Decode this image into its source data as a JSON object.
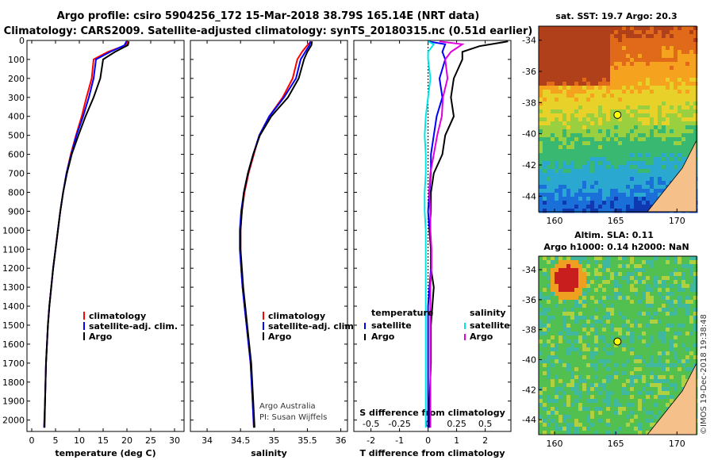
{
  "header": {
    "title_line1": "Argo profile: csiro 5904256_172 15-Mar-2018 38.79S 165.14E (NRT data)",
    "title_line2": "Climatology: CARS2009. Satellite-adjusted climatology: synTS_20180315.nc (0.51d earlier)"
  },
  "colors": {
    "climatology": "#ff0000",
    "satellite": "#0000ff",
    "argo": "#000000",
    "sal_satellite": "#00e5e5",
    "sal_argo": "#e000e0"
  },
  "chart_data": [
    {
      "type": "line",
      "id": "temperature",
      "xlabel": "temperature (deg C)",
      "xlim": [
        -1,
        32
      ],
      "xticks": [
        0,
        5,
        10,
        15,
        20,
        25,
        30
      ],
      "xtick_labels": [
        "0",
        "5",
        "10",
        "15",
        "20",
        "25",
        "30"
      ],
      "ylim": [
        2060,
        0
      ],
      "yticks": [
        0,
        100,
        200,
        300,
        400,
        500,
        600,
        700,
        800,
        900,
        1000,
        1100,
        1200,
        1300,
        1400,
        1500,
        1600,
        1700,
        1800,
        1900,
        2000
      ],
      "ytick_labels": [
        "0",
        "100",
        "200",
        "300",
        "400",
        "500",
        "600",
        "700",
        "800",
        "900",
        "1000",
        "1100",
        "1200",
        "1300",
        "1400",
        "1500",
        "1600",
        "1700",
        "1800",
        "1900",
        "2000"
      ],
      "legend": [
        "climatology",
        "satellite-adj. clim.",
        "Argo"
      ],
      "legend_position": "lower-right",
      "series": [
        {
          "name": "climatology",
          "color": "#ff0000",
          "x": [
            20.3,
            19.8,
            16.0,
            13.0,
            12.6,
            11.5,
            10.5,
            9.3,
            8.2,
            7.3,
            6.6,
            6.0,
            5.5,
            5.0,
            4.5,
            4.1,
            3.7,
            3.4,
            3.2,
            3.0,
            2.8,
            2.6
          ],
          "y": [
            5,
            25,
            60,
            100,
            200,
            300,
            400,
            500,
            600,
            700,
            800,
            900,
            1000,
            1100,
            1200,
            1300,
            1400,
            1500,
            1600,
            1700,
            1900,
            2040
          ]
        },
        {
          "name": "satellite-adj. clim.",
          "color": "#0000ff",
          "x": [
            19.9,
            19.5,
            16.5,
            13.5,
            13.0,
            12.0,
            10.8,
            9.4,
            8.3,
            7.3,
            6.6,
            6.0,
            5.5,
            5.0,
            4.5,
            4.1,
            3.7,
            3.4,
            3.2,
            3.0,
            2.8,
            2.6
          ],
          "y": [
            5,
            25,
            60,
            100,
            200,
            300,
            400,
            500,
            600,
            700,
            800,
            900,
            1000,
            1100,
            1200,
            1300,
            1400,
            1500,
            1600,
            1700,
            1900,
            2040
          ]
        },
        {
          "name": "Argo",
          "color": "#000000",
          "x": [
            20.4,
            20.2,
            17.5,
            15.0,
            14.4,
            13.0,
            11.3,
            9.8,
            8.4,
            7.4,
            6.6,
            6.0,
            5.5,
            5.0,
            4.5,
            4.1,
            3.7,
            3.4,
            3.2,
            3.0,
            2.8,
            2.7
          ],
          "y": [
            5,
            25,
            60,
            100,
            200,
            300,
            400,
            500,
            600,
            700,
            800,
            900,
            1000,
            1100,
            1200,
            1300,
            1400,
            1500,
            1600,
            1700,
            1900,
            2040
          ]
        }
      ]
    },
    {
      "type": "line",
      "id": "salinity",
      "xlabel": "salinity",
      "xlim": [
        33.75,
        36.1
      ],
      "xticks": [
        34,
        34.5,
        35,
        35.5,
        36
      ],
      "xtick_labels": [
        "34",
        "34.5",
        "35",
        "35.5",
        "36"
      ],
      "ylim": [
        2060,
        0
      ],
      "legend": [
        "climatology",
        "satellite-adj. clim.",
        "Argo"
      ],
      "legend_position": "lower-right",
      "credit_line1": "Argo Australia",
      "credit_line2": "PI: Susan Wijffels",
      "series": [
        {
          "name": "climatology",
          "color": "#ff0000",
          "x": [
            35.55,
            35.5,
            35.42,
            35.35,
            35.28,
            35.13,
            34.93,
            34.78,
            34.7,
            34.62,
            34.56,
            34.52,
            34.5,
            34.5,
            34.51,
            34.53,
            34.56,
            34.59,
            34.62,
            34.65,
            34.68,
            34.7
          ],
          "y": [
            5,
            25,
            60,
            100,
            200,
            300,
            400,
            500,
            600,
            700,
            800,
            900,
            1000,
            1100,
            1200,
            1300,
            1400,
            1500,
            1600,
            1700,
            1900,
            2040
          ]
        },
        {
          "name": "satellite-adj. clim.",
          "color": "#0000ff",
          "x": [
            35.55,
            35.53,
            35.47,
            35.4,
            35.33,
            35.15,
            34.93,
            34.78,
            34.69,
            34.61,
            34.55,
            34.51,
            34.49,
            34.49,
            34.51,
            34.53,
            34.56,
            34.59,
            34.62,
            34.65,
            34.68,
            34.7
          ],
          "y": [
            5,
            25,
            60,
            100,
            200,
            300,
            400,
            500,
            600,
            700,
            800,
            900,
            1000,
            1100,
            1200,
            1300,
            1400,
            1500,
            1600,
            1700,
            1900,
            2040
          ]
        },
        {
          "name": "Argo",
          "color": "#000000",
          "x": [
            35.57,
            35.56,
            35.5,
            35.45,
            35.37,
            35.21,
            34.96,
            34.79,
            34.69,
            34.61,
            34.55,
            34.52,
            34.5,
            34.5,
            34.52,
            34.54,
            34.57,
            34.6,
            34.63,
            34.66,
            34.69,
            34.71
          ],
          "y": [
            5,
            25,
            60,
            100,
            200,
            300,
            400,
            500,
            600,
            700,
            800,
            900,
            1000,
            1100,
            1200,
            1300,
            1400,
            1500,
            1600,
            1700,
            1900,
            2040
          ]
        }
      ]
    },
    {
      "type": "line",
      "id": "difference",
      "xlabel": "T difference from climatology",
      "xlim": [
        -2.6,
        2.9
      ],
      "xticks": [
        -2,
        -1,
        0,
        1,
        2
      ],
      "xtick_labels": [
        "-2",
        "-1",
        "0",
        "1",
        "2"
      ],
      "s_axis_label": "S difference from climatology",
      "s_axis_ticks": [
        -0.5,
        -0.25,
        0,
        0.25,
        0.5
      ],
      "s_axis_tick_labels": [
        "-0.5",
        "-0.25",
        "0",
        "0.25",
        "0.5"
      ],
      "ylim": [
        2060,
        0
      ],
      "legend_temperature_title": "temperature",
      "legend_salinity_title": "salinity",
      "legend_temperature": [
        "satellite",
        "Argo"
      ],
      "legend_salinity": [
        "satellite",
        "Argo"
      ],
      "legend_position": "lower",
      "series": [
        {
          "name": "T satellite",
          "color": "#0000ff",
          "x": [
            0.0,
            0.6,
            0.5,
            0.6,
            0.4,
            0.5,
            0.3,
            0.2,
            0.1,
            0.1,
            0.05,
            0.0,
            0.05,
            0.1,
            0.1,
            0.05,
            0.0,
            0.0,
            0.0,
            0.0,
            0.0
          ],
          "y": [
            5,
            20,
            60,
            100,
            200,
            300,
            400,
            500,
            600,
            700,
            800,
            900,
            1000,
            1100,
            1200,
            1300,
            1400,
            1500,
            1700,
            1900,
            2040
          ]
        },
        {
          "name": "T Argo",
          "color": "#000000",
          "x": [
            2.8,
            1.8,
            1.2,
            1.2,
            0.9,
            0.8,
            0.9,
            0.6,
            0.5,
            0.2,
            0.1,
            0.1,
            0.05,
            0.1,
            0.1,
            0.2,
            0.15,
            0.1,
            0.1,
            0.05,
            0.05
          ],
          "y": [
            5,
            30,
            60,
            100,
            200,
            300,
            400,
            500,
            600,
            700,
            800,
            900,
            1000,
            1100,
            1200,
            1300,
            1400,
            1500,
            1700,
            1900,
            2040
          ]
        },
        {
          "name": "S satellite",
          "color": "#00e5e5",
          "x": [
            0.0,
            0.05,
            0.0,
            0.0,
            0.02,
            0.0,
            -0.02,
            -0.03,
            -0.02,
            -0.02,
            -0.03,
            -0.03,
            -0.02,
            -0.02,
            -0.02,
            -0.02,
            -0.02,
            -0.02,
            -0.02,
            -0.02,
            -0.02
          ],
          "y": [
            5,
            20,
            60,
            100,
            200,
            300,
            400,
            500,
            600,
            700,
            800,
            900,
            1000,
            1100,
            1200,
            1300,
            1400,
            1500,
            1700,
            1900,
            2040
          ]
        },
        {
          "name": "S Argo",
          "color": "#e000e0",
          "x": [
            0.1,
            0.3,
            0.2,
            0.15,
            0.17,
            0.13,
            0.12,
            0.08,
            0.05,
            0.02,
            0.01,
            0.02,
            0.02,
            0.03,
            0.03,
            0.02,
            0.02,
            0.02,
            0.02,
            0.02,
            0.02
          ],
          "y": [
            5,
            20,
            60,
            100,
            200,
            300,
            400,
            500,
            600,
            700,
            800,
            900,
            1000,
            1100,
            1200,
            1300,
            1400,
            1500,
            1700,
            1900,
            2040
          ]
        }
      ]
    },
    {
      "type": "heatmap",
      "id": "sst_map",
      "title": "sat. SST: 19.7 Argo: 20.3",
      "xticks": [
        160,
        165,
        170
      ],
      "xtick_labels": [
        "160",
        "165",
        "170"
      ],
      "yticks": [
        -34,
        -36,
        -38,
        -40,
        -42,
        -44
      ],
      "ytick_labels": [
        "-34",
        "-36",
        "-38",
        "-40",
        "-42",
        "-44"
      ],
      "xlim": [
        158.7,
        171.6
      ],
      "ylim": [
        -45.0,
        -33.1
      ],
      "marker": {
        "lon": 165.14,
        "lat": -38.79
      }
    },
    {
      "type": "heatmap",
      "id": "sla_map",
      "title_line1": "Altim. SLA: 0.11",
      "title_line2": "Argo h1000: 0.14 h2000: NaN",
      "xticks": [
        160,
        165,
        170
      ],
      "xtick_labels": [
        "160",
        "165",
        "170"
      ],
      "yticks": [
        -34,
        -36,
        -38,
        -40,
        -42,
        -44
      ],
      "ytick_labels": [
        "-34",
        "-36",
        "-38",
        "-40",
        "-42",
        "-44"
      ],
      "xlim": [
        158.7,
        171.6
      ],
      "ylim": [
        -45.0,
        -33.1
      ],
      "marker": {
        "lon": 165.14,
        "lat": -38.79
      }
    }
  ],
  "footer": {
    "stamp": "©IMOS 19-Dec-2018 19:38:48"
  }
}
